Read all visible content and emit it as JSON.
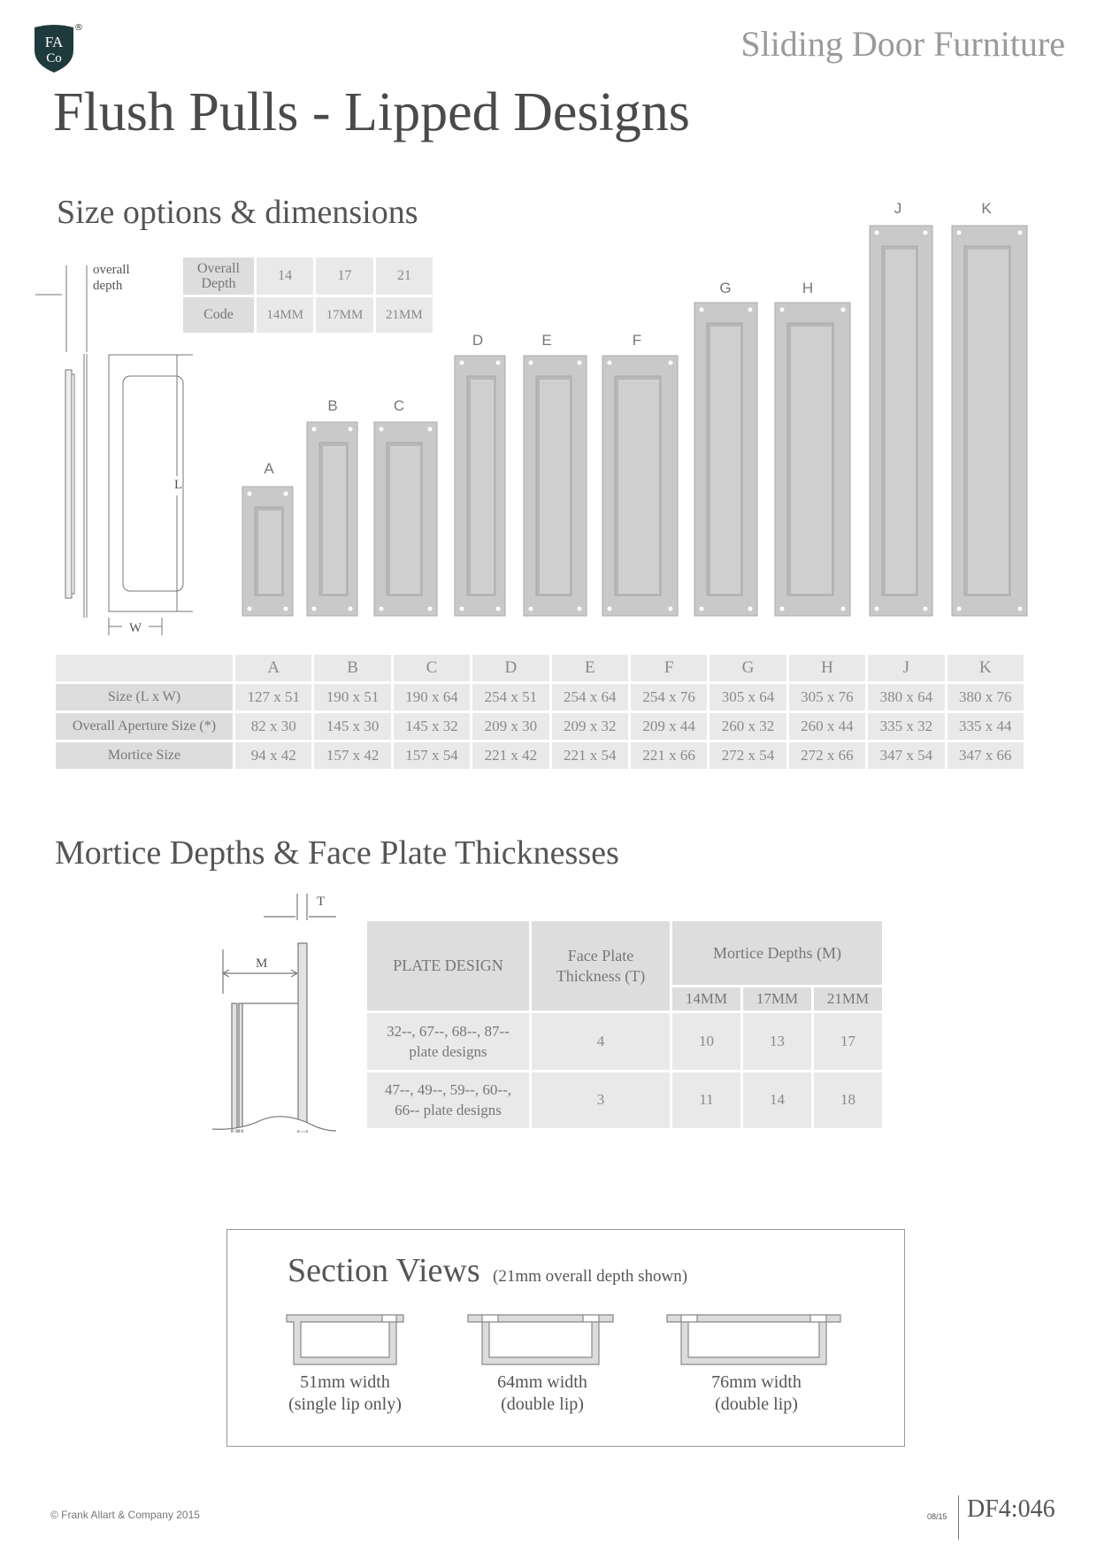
{
  "brand": {
    "logo_text_top": "FA",
    "logo_text_bottom": "Co",
    "registered_mark": "®"
  },
  "header": {
    "category": "Sliding Door Furniture"
  },
  "page_title": "Flush Pulls - Lipped Designs",
  "size_section": {
    "title": "Size options & dimensions",
    "diagram_labels": {
      "overall_depth": [
        "overall",
        "depth"
      ],
      "length": "L",
      "width": "W"
    },
    "depth_table": {
      "header": "Overall Depth",
      "depths": [
        "14",
        "17",
        "21"
      ],
      "code_label": "Code",
      "codes": [
        "14MM",
        "17MM",
        "21MM"
      ]
    },
    "products": [
      "A",
      "B",
      "C",
      "D",
      "E",
      "F",
      "G",
      "H",
      "J",
      "K"
    ],
    "size_table": {
      "columns": [
        "A",
        "B",
        "C",
        "D",
        "E",
        "F",
        "G",
        "H",
        "J",
        "K"
      ],
      "rows": [
        {
          "label": "Size (L x W)",
          "values": [
            "127 x 51",
            "190 x 51",
            "190 x 64",
            "254 x 51",
            "254 x 64",
            "254 x 76",
            "305 x 64",
            "305 x 76",
            "380 x 64",
            "380 x 76"
          ]
        },
        {
          "label": "Overall Aperture Size (*)",
          "values": [
            "82 x 30",
            "145 x 30",
            "145 x 32",
            "209 x 30",
            "209 x 32",
            "209 x 44",
            "260 x 32",
            "260 x 44",
            "335 x 32",
            "335 x 44"
          ]
        },
        {
          "label": "Mortice Size",
          "values": [
            "94 x 42",
            "157 x 42",
            "157 x 54",
            "221 x 42",
            "221 x 54",
            "221 x 66",
            "272 x 54",
            "272 x 66",
            "347 x 54",
            "347 x 66"
          ]
        }
      ]
    }
  },
  "mortice_section": {
    "title": "Mortice Depths & Face Plate Thicknesses",
    "diagram_labels": {
      "thickness": "T",
      "mortice": "M"
    },
    "table": {
      "col_plate": "PLATE DESIGN",
      "col_thickness": "Face Plate Thickness (T)",
      "col_depths": "Mortice Depths (M)",
      "depth_cols": [
        "14MM",
        "17MM",
        "21MM"
      ],
      "rows": [
        {
          "design": [
            "32--, 67--, 68--, 87--",
            "plate designs"
          ],
          "thickness": "4",
          "depths": [
            "10",
            "13",
            "17"
          ]
        },
        {
          "design": [
            "47--, 49--, 59--, 60--,",
            "66-- plate designs"
          ],
          "thickness": "3",
          "depths": [
            "11",
            "14",
            "18"
          ]
        }
      ]
    }
  },
  "section_views": {
    "title": "Section Views",
    "subtitle": "(21mm overall depth shown)",
    "views": [
      {
        "width": "51mm width",
        "lip": "(single lip only)"
      },
      {
        "width": "64mm width",
        "lip": "(double lip)"
      },
      {
        "width": "76mm width",
        "lip": "(double lip)"
      }
    ]
  },
  "footer": {
    "copyright": "© Frank Allart & Company 2015",
    "date": "08/15",
    "code": "DF4:046"
  }
}
